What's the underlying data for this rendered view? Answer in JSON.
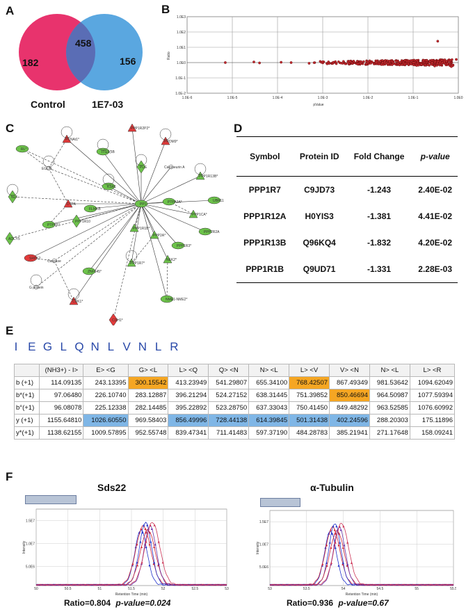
{
  "panels": {
    "a": "A",
    "b": "B",
    "c": "C",
    "d": "D",
    "e": "E",
    "f": "F"
  },
  "venn": {
    "left_only": "182",
    "overlap": "458",
    "right_only": "156",
    "left_label": "Control",
    "right_label": "1E7-03",
    "left_color": "#e8336d",
    "right_color": "#5aa7e0",
    "overlap_color": "#5a6db5"
  },
  "scatter": {
    "y_axis_label": "Ratio",
    "x_axis_label": "pValue",
    "y_ticks": [
      "1.0E3",
      "1.0E2",
      "1.0E1",
      "1.0E0",
      "1.0E-1",
      "1.0E-2"
    ],
    "x_ticks": [
      "1.0E-6",
      "1.0E-5",
      "1.0E-4",
      "1.0E-3",
      "1.0E-2",
      "1.0E-1",
      "1.0E0"
    ]
  },
  "chart_data": {
    "type": "scatter",
    "title": "",
    "xlabel": "pValue",
    "ylabel": "Ratio",
    "x_scale": "log",
    "y_scale": "log",
    "xlim": [
      1e-06,
      1
    ],
    "ylim": [
      0.01,
      1000
    ],
    "points": [
      [
        7e-06,
        1.0
      ],
      [
        3e-05,
        1.1
      ],
      [
        4e-05,
        0.95
      ],
      [
        0.00012,
        1.05
      ],
      [
        0.0002,
        1.0
      ],
      [
        0.0005,
        0.9
      ],
      [
        0.001,
        1.15
      ],
      [
        0.002,
        0.85
      ],
      [
        0.004,
        1.2
      ],
      [
        0.006,
        0.8
      ],
      [
        0.01,
        1.1
      ],
      [
        0.02,
        0.75
      ],
      [
        0.03,
        1.25
      ],
      [
        0.05,
        0.7
      ],
      [
        0.08,
        1.3
      ],
      [
        0.12,
        0.65
      ],
      [
        0.2,
        1.4
      ],
      [
        0.3,
        0.6
      ],
      [
        0.35,
        25
      ],
      [
        0.5,
        1.5
      ],
      [
        0.7,
        0.55
      ],
      [
        0.9,
        1.6
      ]
    ]
  },
  "network": {
    "nodes": [
      {
        "id": "ppp1r3b2",
        "label": "PPP1R2P2*"
      },
      {
        "id": "pcnat",
        "label": "PCNAt1*"
      },
      {
        "id": "itgb8",
        "label": "ITG1(5B"
      },
      {
        "id": "prdm9",
        "label": "PRDM9*"
      },
      {
        "id": "plg",
        "label": "PLG"
      },
      {
        "id": "rl",
        "label": "RL*"
      },
      {
        "id": "ppp1r13b",
        "label": "PPP1R13B*"
      },
      {
        "id": "calcineurin",
        "label": "Calcineurin A"
      },
      {
        "id": "ksr1",
        "label": "KSR1"
      },
      {
        "id": "nlf",
        "label": "NLF"
      },
      {
        "id": "egun",
        "label": "EGUN"
      },
      {
        "id": "dtpa",
        "label": "DTPA"
      },
      {
        "id": "flmkb",
        "label": "FLMKB"
      },
      {
        "id": "pp1",
        "label": "PP1"
      },
      {
        "id": "ptprf",
        "label": "PTPRF*"
      },
      {
        "id": "ppp1r10",
        "label": "PPP1R10"
      },
      {
        "id": "ubr11",
        "label": "UBR11"
      },
      {
        "id": "ppp1ca",
        "label": "PPP1CA*"
      },
      {
        "id": "ptpa",
        "label": "PTPA2A*"
      },
      {
        "id": "ptp2a",
        "label": "PPP2A*"
      },
      {
        "id": "ppp1r1b",
        "label": "PPP1R1B*"
      },
      {
        "id": "ppp2r2a",
        "label": "PPP2R2A"
      },
      {
        "id": "adcy5",
        "label": "ADCY5"
      },
      {
        "id": "srpk2",
        "label": "SRPK2"
      },
      {
        "id": "caspase",
        "label": "Caspase"
      },
      {
        "id": "ppp1r7",
        "label": "PPP1R7*"
      },
      {
        "id": "znf",
        "label": "ZNF645*"
      },
      {
        "id": "gprotein",
        "label": "G protein"
      },
      {
        "id": "cdk",
        "label": "CDK1*"
      },
      {
        "id": "nek",
        "label": "NEK2*"
      },
      {
        "id": "nme",
        "label": "NME1-NME2*"
      },
      {
        "id": "eif",
        "label": "PPP1R3*"
      },
      {
        "id": "cd",
        "label": "CDH1*"
      }
    ]
  },
  "tableD": {
    "headers": [
      "Symbol",
      "Protein ID",
      "Fold Change",
      "p-value"
    ],
    "rows": [
      {
        "symbol": "PPP1R7",
        "id": "C9JD73",
        "fc": "-1.243",
        "p": "2.40E-02"
      },
      {
        "symbol": "PPP1R12A",
        "id": "H0YIS3",
        "fc": "-1.381",
        "p": "4.41E-02"
      },
      {
        "symbol": "PPP1R13B",
        "id": "Q96KQ4",
        "fc": "-1.832",
        "p": "4.20E-02"
      },
      {
        "symbol": "PPP1R1B",
        "id": "Q9UD71",
        "fc": "-1.331",
        "p": "2.28E-03"
      }
    ]
  },
  "sequence": [
    "I",
    "E",
    "G",
    "L",
    "Q",
    "N",
    "L",
    "V",
    "N",
    "L",
    "R"
  ],
  "fragments": {
    "headers": [
      "(NH3+) - I>",
      "E>    <G",
      "G>    <L",
      "L>    <Q",
      "Q>    <N",
      "N>    <L",
      "L>    <V",
      "V>    <N",
      "N>    <L",
      "L>    <R"
    ],
    "rows": [
      {
        "label": "b (+1)",
        "values": [
          "114.09135",
          "243.13395",
          "300.15542",
          "413.23949",
          "541.29807",
          "655.34100",
          "768.42507",
          "867.49349",
          "981.53642",
          "1094.62049"
        ]
      },
      {
        "label": "b*(+1)",
        "values": [
          "97.06480",
          "226.10740",
          "283.12887",
          "396.21294",
          "524.27152",
          "638.31445",
          "751.39852",
          "850.46694",
          "964.50987",
          "1077.59394"
        ]
      },
      {
        "label": "b°(+1)",
        "values": [
          "96.08078",
          "225.12338",
          "282.14485",
          "395.22892",
          "523.28750",
          "637.33043",
          "750.41450",
          "849.48292",
          "963.52585",
          "1076.60992"
        ]
      },
      {
        "label": "y (+1)",
        "values": [
          "1155.64810",
          "1026.60550",
          "969.58403",
          "856.49996",
          "728.44138",
          "614.39845",
          "501.31438",
          "402.24596",
          "288.20303",
          "175.11896"
        ]
      },
      {
        "label": "y*(+1)",
        "values": [
          "1138.62155",
          "1009.57895",
          "952.55748",
          "839.47341",
          "711.41483",
          "597.37190",
          "484.28783",
          "385.21941",
          "271.17648",
          "158.09241"
        ]
      }
    ]
  },
  "xic_left": {
    "title": "Sds22",
    "ratio_text": "Ratio=0.804",
    "p_text": "p-value=0.024",
    "x_label": "Retention Time (min)",
    "y_label": "Intensity",
    "y_ticks": [
      "1.5E7",
      "1.0E7",
      "5.0E6"
    ],
    "x_ticks": [
      "50",
      "50.5",
      "51",
      "51.5",
      "52",
      "52.5",
      "53"
    ]
  },
  "xic_right": {
    "title": "α-Tubulin",
    "ratio_text": "Ratio=0.936",
    "p_text": "p-value=0.67",
    "x_label": "Retention Time (min)",
    "y_label": "Intensity",
    "y_ticks": [
      "1.5E7",
      "1.0E7",
      "5.0E6"
    ],
    "x_ticks": [
      "53",
      "53.5",
      "54",
      "54.5",
      "55",
      "55.5"
    ]
  }
}
